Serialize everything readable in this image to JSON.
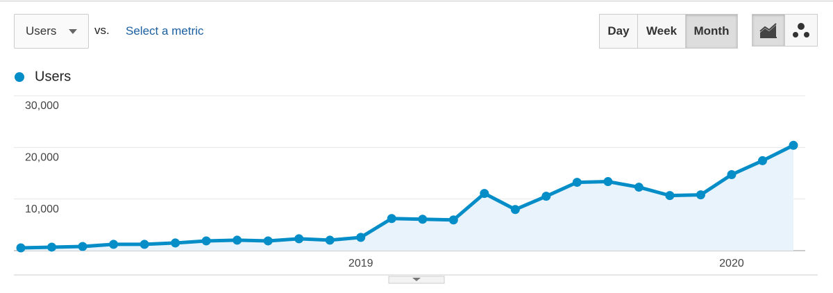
{
  "toolbar": {
    "metric": "Users",
    "vs": "vs.",
    "compare": "Select a metric",
    "periods": [
      "Day",
      "Week",
      "Month"
    ],
    "active_period": 2
  },
  "chart_data": {
    "type": "line",
    "categories": [
      null,
      null,
      null,
      null,
      null,
      null,
      null,
      null,
      null,
      null,
      null,
      "2019",
      null,
      null,
      null,
      null,
      null,
      null,
      null,
      null,
      null,
      null,
      null,
      "2020",
      null,
      null
    ],
    "series": [
      {
        "name": "Users",
        "color": "#058dc7",
        "values": [
          540,
          680,
          810,
          1220,
          1220,
          1490,
          1890,
          2030,
          1890,
          2300,
          2030,
          2570,
          6220,
          6080,
          5950,
          11080,
          7970,
          10540,
          13240,
          13380,
          12300,
          10680,
          10810,
          14730,
          17430,
          20410
        ]
      }
    ],
    "ylim": [
      0,
      30000
    ],
    "yticks": [
      {
        "value": 10000,
        "label": "10,000"
      },
      {
        "value": 20000,
        "label": "20,000"
      },
      {
        "value": 30000,
        "label": "30,000"
      }
    ],
    "grid": true,
    "area": true,
    "area_color": "#e8f3fb"
  }
}
